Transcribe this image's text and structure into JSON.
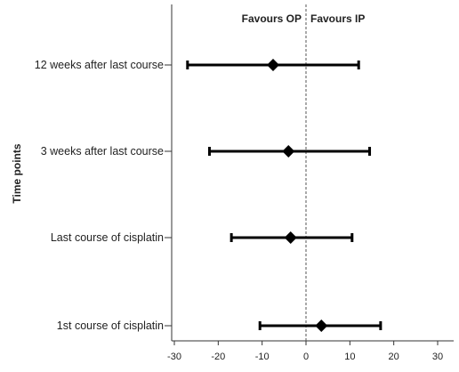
{
  "chart_data": {
    "type": "forest",
    "ylabel": "Time points",
    "categories": [
      "12 weeks after last course",
      "3 weeks after last course",
      "Last course of cisplatin",
      "1st course of cisplatin"
    ],
    "estimates": [
      -7.5,
      -4.0,
      -3.5,
      3.5
    ],
    "ci_lower": [
      -27.0,
      -22.0,
      -17.0,
      -10.5
    ],
    "ci_upper": [
      12.0,
      14.5,
      10.5,
      17.0
    ],
    "x_ticks": [
      "-30",
      "-20",
      "-10",
      "0",
      "10",
      "20",
      "30"
    ],
    "xlim": [
      -30,
      30
    ],
    "reference_line": 0,
    "annotations": {
      "left": "Favours OP",
      "right": "Favours IP"
    },
    "grid": false,
    "colors": {
      "marker": "#000000",
      "reference": "#555555",
      "axis": "#333333"
    }
  }
}
